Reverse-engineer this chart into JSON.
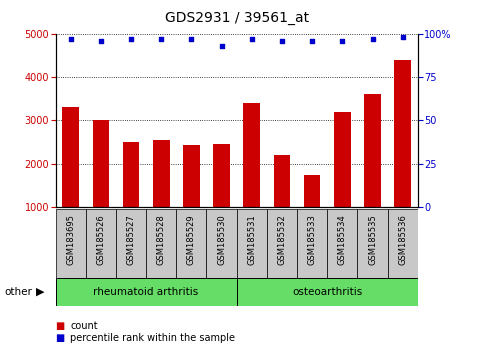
{
  "title": "GDS2931 / 39561_at",
  "categories": [
    "GSM183695",
    "GSM185526",
    "GSM185527",
    "GSM185528",
    "GSM185529",
    "GSM185530",
    "GSM185531",
    "GSM185532",
    "GSM185533",
    "GSM185534",
    "GSM185535",
    "GSM185536"
  ],
  "bar_values": [
    3300,
    3000,
    2500,
    2550,
    2440,
    2450,
    3400,
    2200,
    1750,
    3200,
    3600,
    4400
  ],
  "percentile_values": [
    97,
    96,
    97,
    97,
    97,
    93,
    97,
    96,
    96,
    96,
    97,
    98
  ],
  "bar_color": "#cc0000",
  "dot_color": "#0000cc",
  "group1_label": "rheumatoid arthritis",
  "group2_label": "osteoarthritis",
  "group_color": "#66dd66",
  "group_box_color": "#c8c8c8",
  "ylim_left": [
    1000,
    5000
  ],
  "ylim_right": [
    0,
    100
  ],
  "yticks_left": [
    1000,
    2000,
    3000,
    4000,
    5000
  ],
  "yticks_right": [
    0,
    25,
    50,
    75,
    100
  ],
  "legend_count_label": "count",
  "legend_pct_label": "percentile rank within the sample",
  "other_label": "other",
  "background_color": "#ffffff",
  "title_fontsize": 10,
  "tick_fontsize": 7,
  "label_fontsize": 7.5
}
